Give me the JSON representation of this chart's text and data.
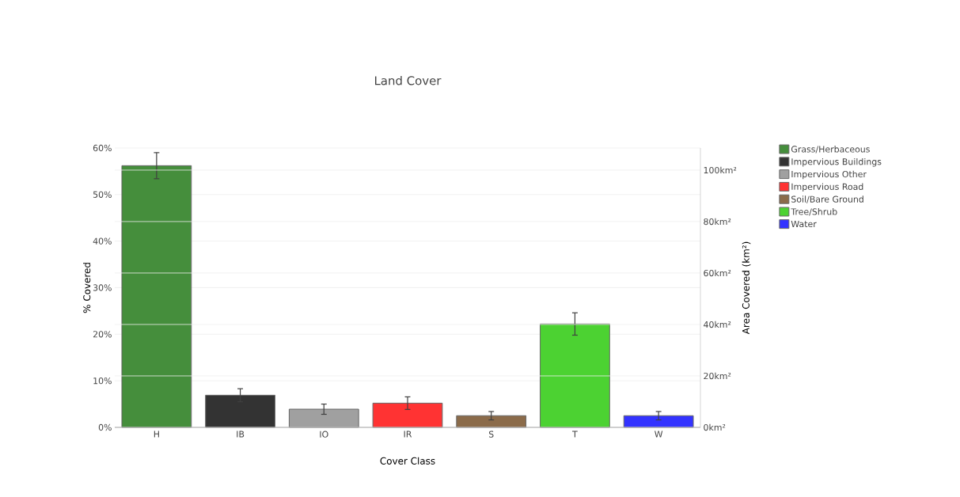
{
  "chart_data": {
    "type": "bar",
    "title": "Land Cover",
    "xlabel": "Cover Class",
    "ylabel": "% Covered",
    "y2label": "Area Covered (km²)",
    "categories": [
      "H",
      "IB",
      "IO",
      "IR",
      "S",
      "T",
      "W"
    ],
    "series": [
      {
        "name": "Grass/Herbaceous",
        "color": "#458e3c",
        "values": [
          56.2,
          null,
          null,
          null,
          null,
          null,
          null
        ],
        "errors": [
          2.8,
          null,
          null,
          null,
          null,
          null,
          null
        ]
      },
      {
        "name": "Impervious Buildings",
        "color": "#333333",
        "values": [
          null,
          6.9,
          null,
          null,
          null,
          null,
          null
        ],
        "errors": [
          null,
          1.4,
          null,
          null,
          null,
          null,
          null
        ]
      },
      {
        "name": "Impervious Other",
        "color": "#a0a0a0",
        "values": [
          null,
          null,
          3.9,
          null,
          null,
          null,
          null
        ],
        "errors": [
          null,
          null,
          1.1,
          null,
          null,
          null,
          null
        ]
      },
      {
        "name": "Impervious Road",
        "color": "#ff3333",
        "values": [
          null,
          null,
          null,
          5.2,
          null,
          null,
          null
        ],
        "errors": [
          null,
          null,
          null,
          1.35,
          null,
          null,
          null
        ]
      },
      {
        "name": "Soil/Bare Ground",
        "color": "#8b6b4a",
        "values": [
          null,
          null,
          null,
          null,
          2.5,
          null,
          null
        ],
        "errors": [
          null,
          null,
          null,
          null,
          0.9,
          null,
          null
        ]
      },
      {
        "name": "Tree/Shrub",
        "color": "#4cd232",
        "values": [
          null,
          null,
          null,
          null,
          null,
          22.2,
          null
        ],
        "errors": [
          null,
          null,
          null,
          null,
          null,
          2.4,
          null
        ]
      },
      {
        "name": "Water",
        "color": "#3333ff",
        "values": [
          null,
          null,
          null,
          null,
          null,
          null,
          2.5
        ],
        "errors": [
          null,
          null,
          null,
          null,
          null,
          null,
          0.9
        ]
      }
    ],
    "ylim": [
      0,
      60
    ],
    "yticks": [
      {
        "value": 0,
        "label": "0%"
      },
      {
        "value": 10,
        "label": "10%"
      },
      {
        "value": 20,
        "label": "20%"
      },
      {
        "value": 30,
        "label": "30%"
      },
      {
        "value": 40,
        "label": "40%"
      },
      {
        "value": 50,
        "label": "50%"
      },
      {
        "value": 60,
        "label": "60%"
      }
    ],
    "y2lim": [
      0,
      108.6
    ],
    "y2ticks": [
      {
        "value": 0,
        "label": "0km²"
      },
      {
        "value": 20,
        "label": "20km²"
      },
      {
        "value": 40,
        "label": "40km²"
      },
      {
        "value": 60,
        "label": "60km²"
      },
      {
        "value": 80,
        "label": "80km²"
      },
      {
        "value": 100,
        "label": "100km²"
      }
    ],
    "grid": "y",
    "legend": "right"
  }
}
